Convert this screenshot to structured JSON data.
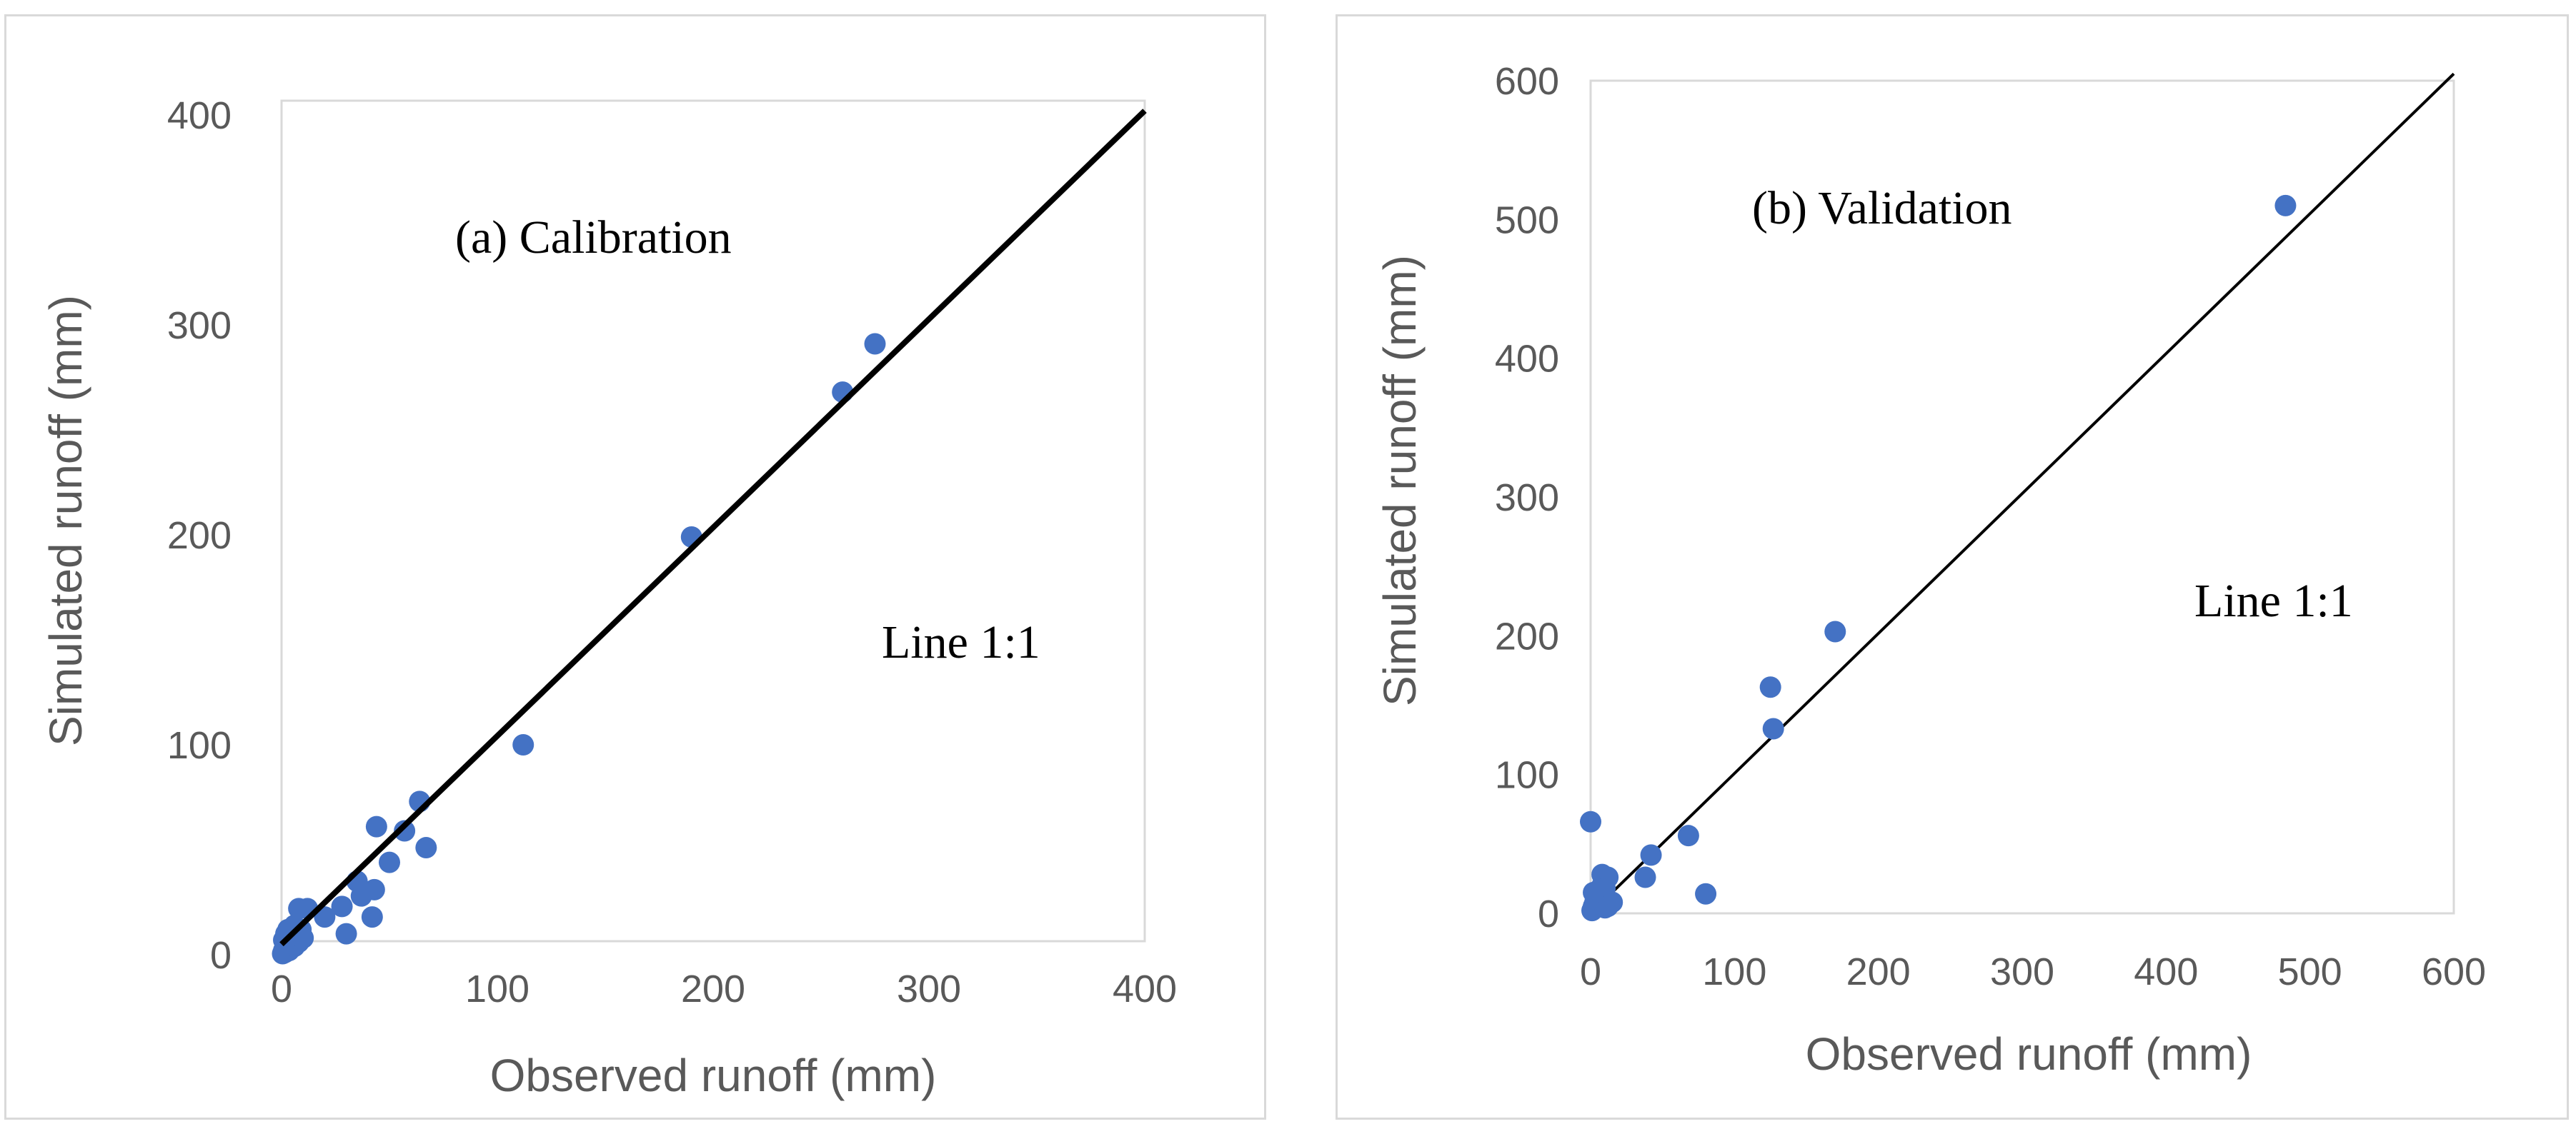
{
  "chart_data": [
    {
      "type": "scatter",
      "id": "a",
      "annotations": [
        "(a) Calibration",
        "Line 1:1"
      ],
      "xlabel": "Observed runoff (mm)",
      "ylabel": "Simulated runoff (mm)",
      "xlim": [
        0,
        400
      ],
      "ylim": [
        0,
        400
      ],
      "xticks": [
        "0",
        "100",
        "200",
        "300",
        "400"
      ],
      "yticks": [
        "0",
        "100",
        "200",
        "300",
        "400"
      ],
      "reference_line": {
        "name": "Line 1:1",
        "from": [
          0,
          5
        ],
        "to": [
          400,
          402
        ]
      },
      "series": [
        {
          "name": "Calibration",
          "color": "#4472c4",
          "x": [
            0.5,
            1,
            1.5,
            2,
            2.5,
            3,
            3.5,
            4,
            5,
            6,
            7,
            8,
            9,
            10,
            1,
            2,
            3,
            4,
            6,
            8,
            8,
            12,
            20,
            28,
            30,
            35,
            37,
            42,
            43,
            44,
            50,
            57,
            64,
            67,
            112,
            190,
            260,
            275
          ],
          "y": [
            0.5,
            2,
            1,
            4,
            3,
            6,
            2,
            5,
            8,
            4,
            10,
            6,
            12,
            8,
            7,
            10,
            12,
            9,
            14,
            22,
            9,
            22,
            18,
            23,
            10,
            35,
            28,
            18,
            31,
            61,
            44,
            59,
            73,
            51,
            100,
            199,
            268,
            291
          ]
        }
      ]
    },
    {
      "type": "scatter",
      "id": "b",
      "annotations": [
        "(b) Validation",
        "Line 1:1"
      ],
      "xlabel": "Observed runoff (mm)",
      "ylabel": "Simulated runoff (mm)",
      "xlim": [
        0,
        600
      ],
      "ylim": [
        0,
        600
      ],
      "xticks": [
        "0",
        "100",
        "200",
        "300",
        "400",
        "500",
        "600"
      ],
      "yticks": [
        "0",
        "100",
        "200",
        "300",
        "400",
        "500",
        "600"
      ],
      "reference_line": {
        "name": "Line 1:1",
        "from": [
          0,
          0
        ],
        "to": [
          600,
          605
        ]
      },
      "series": [
        {
          "name": "Validation",
          "color": "#4472c4",
          "x": [
            0,
            1,
            2,
            3,
            5,
            8,
            10,
            12,
            15,
            2,
            8,
            10,
            12,
            38,
            42,
            68,
            80,
            125,
            127,
            170,
            483
          ],
          "y": [
            66,
            2,
            5,
            8,
            10,
            28,
            4,
            26,
            8,
            15,
            20,
            18,
            5,
            26,
            42,
            56,
            14,
            163,
            133,
            203,
            510
          ]
        }
      ]
    }
  ]
}
